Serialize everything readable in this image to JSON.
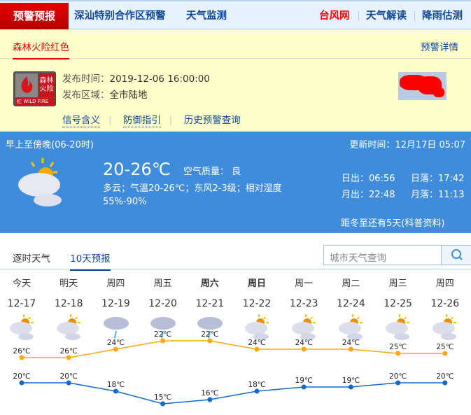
{
  "nav": {
    "active": "预警预报",
    "items": [
      "深汕特别合作区预警",
      "天气监测"
    ],
    "right": [
      "台风网",
      "天气解读",
      "降雨估测"
    ]
  },
  "warning": {
    "title": "森林火险红色",
    "detail_link": "预警详情",
    "badge": {
      "cn": "森林火险",
      "level": "红",
      "en": "WILD FIRE"
    },
    "time_label": "发布时间：",
    "time": "2019-12-06 16:00:00",
    "area_label": "发布区域：",
    "area": "全市陆地",
    "links": [
      "信号含义",
      "防御指引",
      "历史预警查询"
    ]
  },
  "now": {
    "period": "早上至傍晚(06-20时)",
    "update": "更新时间：12月17日 05:07",
    "temp": "20-26℃",
    "aqi": "空气质量： 良",
    "desc1": "多云；气温20-26℃；东风2-3级；相对湿度",
    "desc2": "55%-90%",
    "sunrise": "日出：06:56",
    "sunset": "日落：17:42",
    "moonrise": "月出：22:48",
    "moonset": "月落：11:13",
    "solar_term": "距冬至还有5天(科普资料)",
    "icon": "partly-cloudy-icon"
  },
  "tabs": [
    "逐时天气",
    "10天预报"
  ],
  "active_tab": 1,
  "search": {
    "placeholder": "城市天气查询"
  },
  "colors": {
    "high": "#ffa811",
    "low": "#1469cf",
    "blue": "#3f8cdc",
    "red": "#e00000"
  },
  "chart_data": {
    "type": "line",
    "categories": [
      "今天",
      "明天",
      "周四",
      "周五",
      "周六",
      "周日",
      "周一",
      "周二",
      "周三",
      "周四"
    ],
    "dates": [
      "12-17",
      "12-18",
      "12-19",
      "12-20",
      "12-21",
      "12-22",
      "12-23",
      "12-24",
      "12-25",
      "12-26"
    ],
    "bold": [
      false,
      false,
      false,
      false,
      true,
      true,
      false,
      false,
      false,
      false
    ],
    "icons": [
      "partly-cloudy",
      "partly-cloudy",
      "light-rain",
      "light-rain",
      "light-rain",
      "partly-cloudy",
      "partly-cloudy",
      "partly-cloudy",
      "partly-cloudy",
      "partly-cloudy"
    ],
    "series": [
      {
        "values": [
          26,
          26,
          24,
          22,
          22,
          24,
          24,
          24,
          25,
          25
        ]
      },
      {
        "values": [
          20,
          20,
          18,
          15,
          16,
          18,
          19,
          19,
          20,
          20
        ]
      }
    ],
    "unit": "℃"
  }
}
